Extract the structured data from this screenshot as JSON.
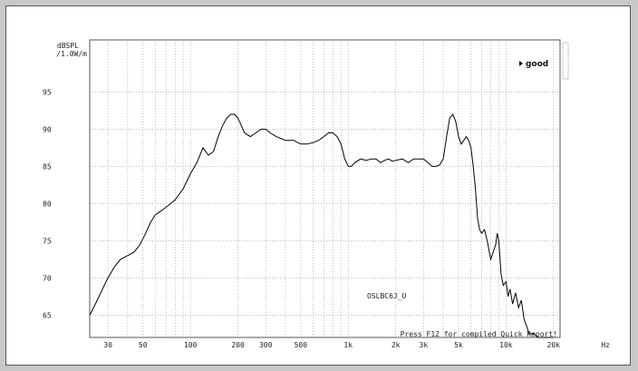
{
  "chart_data": {
    "type": "line",
    "title": "",
    "xlabel": "",
    "ylabel": "",
    "y_unit_line1": "dBSPL",
    "y_unit_line2": "/1.0W/m",
    "x_unit": "Hz",
    "x_scale": "log",
    "xlim": [
      23,
      22000
    ],
    "ylim": [
      62,
      102
    ],
    "grid": true,
    "x_tick_labels": [
      {
        "v": 30,
        "t": "30"
      },
      {
        "v": 50,
        "t": "50"
      },
      {
        "v": 100,
        "t": "100"
      },
      {
        "v": 200,
        "t": "200"
      },
      {
        "v": 300,
        "t": "300"
      },
      {
        "v": 500,
        "t": "500"
      },
      {
        "v": 1000,
        "t": "1k"
      },
      {
        "v": 2000,
        "t": "2k"
      },
      {
        "v": 3000,
        "t": "3k"
      },
      {
        "v": 5000,
        "t": "5k"
      },
      {
        "v": 10000,
        "t": "10k"
      },
      {
        "v": 20000,
        "t": "20k"
      }
    ],
    "y_ticks": [
      65,
      70,
      75,
      80,
      85,
      90,
      95
    ],
    "y_tick_labels": [
      "65",
      "70",
      "75",
      "80",
      "85",
      "90",
      "95"
    ],
    "legend_marker": "good",
    "curve_label": "OSLBC6J_U",
    "footer_note": "Press F12 for compiled Quick Report!",
    "series": [
      {
        "color": "#000000",
        "x": [
          23,
          25,
          27,
          30,
          33,
          36,
          40,
          44,
          48,
          52,
          56,
          60,
          65,
          70,
          75,
          80,
          90,
          100,
          110,
          120,
          130,
          140,
          150,
          160,
          170,
          180,
          190,
          200,
          210,
          220,
          240,
          260,
          280,
          300,
          320,
          350,
          400,
          450,
          500,
          550,
          600,
          650,
          700,
          750,
          800,
          850,
          900,
          950,
          1000,
          1050,
          1100,
          1200,
          1300,
          1400,
          1500,
          1600,
          1700,
          1800,
          1900,
          2000,
          2200,
          2400,
          2600,
          2800,
          3000,
          3200,
          3400,
          3600,
          3800,
          4000,
          4200,
          4400,
          4600,
          4800,
          5000,
          5200,
          5400,
          5600,
          5800,
          6000,
          6200,
          6400,
          6600,
          6800,
          7000,
          7300,
          7600,
          8000,
          8300,
          8600,
          8800,
          9000,
          9300,
          9600,
          10000,
          10300,
          10600,
          11000,
          11500,
          12000,
          12500,
          13000,
          13500,
          14000,
          15000,
          16000,
          17000,
          18000,
          19000,
          20000
        ],
        "y": [
          65,
          66.5,
          68,
          70,
          71.5,
          72.5,
          73,
          73.5,
          74.5,
          76,
          77.5,
          78.5,
          79,
          79.5,
          80,
          80.5,
          82,
          84,
          85.5,
          87.5,
          86.5,
          87,
          89,
          90.5,
          91.5,
          92,
          92,
          91.5,
          90.5,
          89.5,
          89,
          89.5,
          90,
          90,
          89.5,
          89,
          88.5,
          88.5,
          88,
          88,
          88.2,
          88.5,
          89,
          89.5,
          89.5,
          89,
          88,
          86,
          85,
          85,
          85.5,
          86,
          85.8,
          86,
          86,
          85.5,
          85.8,
          86,
          85.7,
          85.8,
          86,
          85.5,
          86,
          86,
          86,
          85.5,
          85,
          85,
          85.2,
          86,
          89,
          91.5,
          92,
          91,
          89,
          88,
          88.5,
          89,
          88.5,
          87.5,
          85,
          82,
          78,
          76.5,
          76,
          76.5,
          75,
          72.5,
          73.5,
          74.5,
          76,
          75,
          70.5,
          69,
          69.5,
          67.5,
          68.5,
          66.5,
          68,
          66,
          67,
          64.5,
          63.5,
          62.5,
          62.5,
          62,
          62,
          62,
          62,
          62
        ]
      }
    ]
  }
}
